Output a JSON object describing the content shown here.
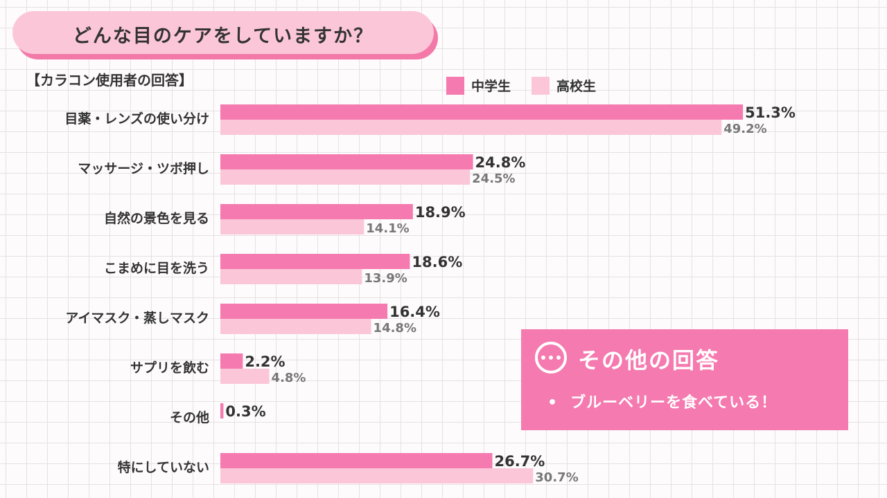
{
  "title": "どんな目のケアをしていますか？",
  "subtitle": "【カラコン使用者の回答】",
  "colors": {
    "junior_high": "#f57aaf",
    "high_school": "#fcc6d9",
    "accent": "#f57aaf"
  },
  "chart_data": {
    "type": "bar",
    "orientation": "horizontal",
    "title": "どんな目のケアをしていますか？",
    "subtitle": "【カラコン使用者の回答】",
    "categories": [
      "目薬・レンズの使い分け",
      "マッサージ・ツボ押し",
      "自然の景色を見る",
      "こまめに目を洗う",
      "アイマスク・蒸しマスク",
      "サプリを飲む",
      "その他",
      "特にしていない"
    ],
    "series": [
      {
        "name": "中学生",
        "color": "#f57aaf",
        "values": [
          51.3,
          24.8,
          18.9,
          18.6,
          16.4,
          2.2,
          0.3,
          26.7
        ]
      },
      {
        "name": "高校生",
        "color": "#fcc6d9",
        "values": [
          49.2,
          24.5,
          14.1,
          13.9,
          14.8,
          4.8,
          null,
          30.7
        ]
      }
    ],
    "value_suffix": "%",
    "xlim": [
      0,
      100
    ],
    "grid": false,
    "legend": "top-right"
  },
  "other_answers": {
    "title": "その他の回答",
    "icon": "ellipsis-icon",
    "items": [
      "ブルーベリーを食べている！"
    ],
    "bullet": "•"
  }
}
